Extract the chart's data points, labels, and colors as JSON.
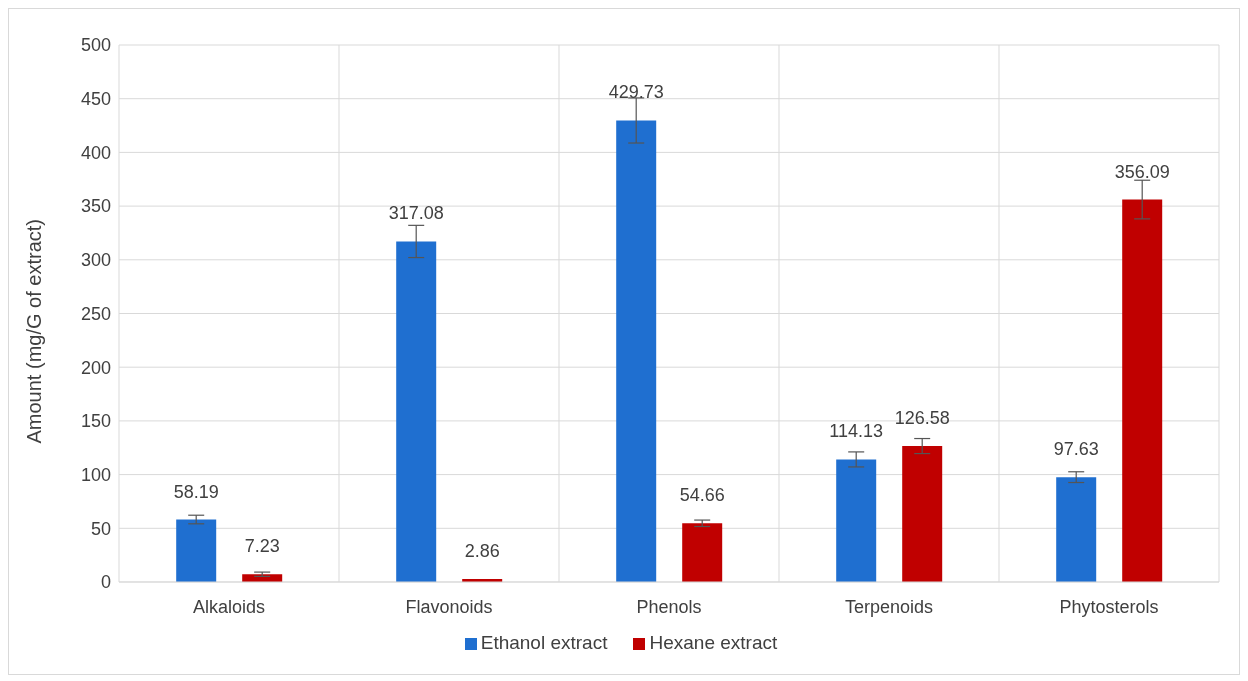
{
  "chart_data": {
    "type": "bar",
    "ylabel": "Amount (mg/G of extract)",
    "categories": [
      "Alkaloids",
      "Flavonoids",
      "Phenols",
      "Terpenoids",
      "Phytosterols"
    ],
    "series": [
      {
        "name": "Ethanol extract",
        "color": "#1f6fd0",
        "values": [
          58.19,
          317.08,
          429.73,
          114.13,
          97.63
        ],
        "errors": [
          4,
          15,
          21,
          7,
          5
        ]
      },
      {
        "name": "Hexane extract",
        "color": "#c00000",
        "values": [
          7.23,
          2.86,
          54.66,
          126.58,
          356.09
        ],
        "errors": [
          2,
          null,
          3,
          7,
          18
        ]
      }
    ],
    "ylim": [
      0,
      500
    ],
    "yticks": [
      0,
      50,
      100,
      150,
      200,
      250,
      300,
      350,
      400,
      450,
      500
    ],
    "grid": true,
    "legend": "bottom",
    "data_labels": true
  }
}
